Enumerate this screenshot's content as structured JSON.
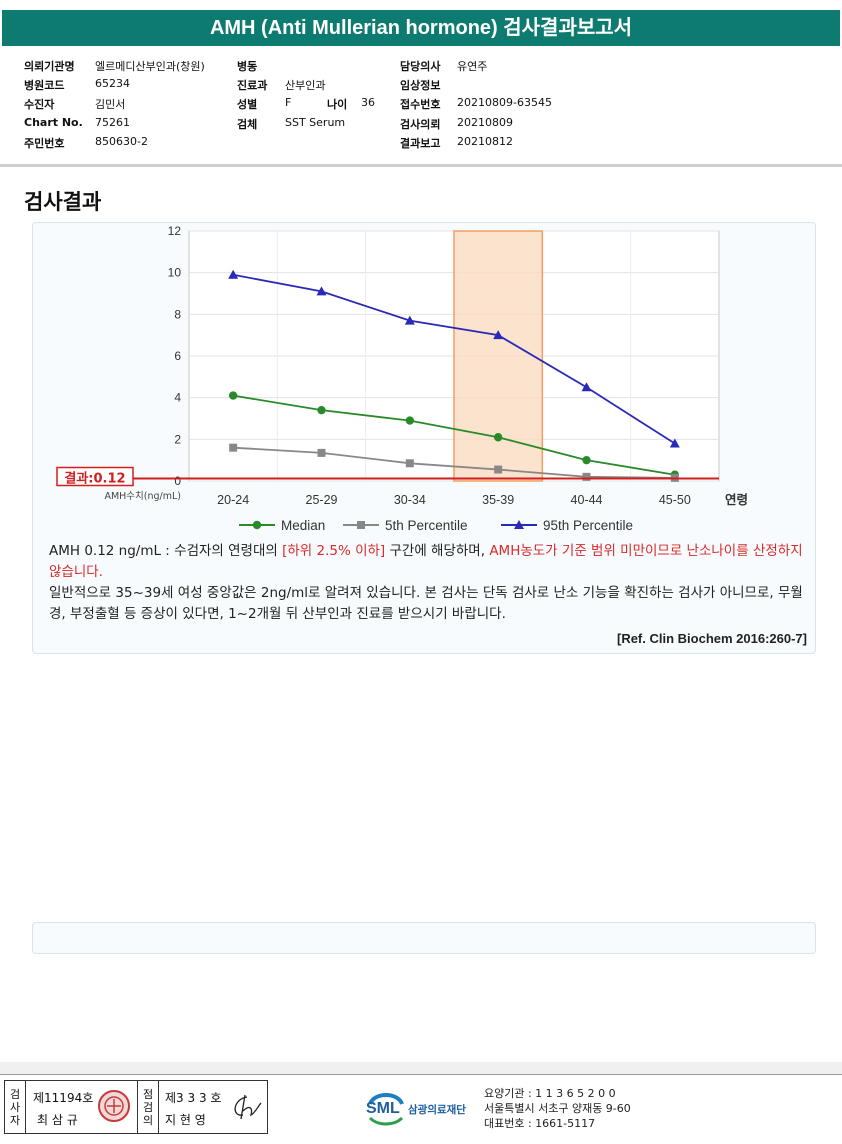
{
  "header": {
    "title": "AMH (Anti Mullerian hormone) 검사결과보고서"
  },
  "info": {
    "institution_label": "의뢰기관명",
    "institution": "엘르메디산부인과(창원)",
    "hospital_code_label": "병원코드",
    "hospital_code": "65234",
    "patient_label": "수진자",
    "patient": "김민서",
    "chart_no_label": "Chart No.",
    "chart_no": "75261",
    "rrn_label": "주민번호",
    "rrn": "850630-2",
    "ward_label": "병동",
    "ward": "",
    "dept_label": "진료과",
    "dept": "산부인과",
    "sex_label": "성별",
    "sex": "F",
    "age_label": "나이",
    "age": "36",
    "specimen_label": "검체",
    "specimen": "SST Serum",
    "doctor_label": "담당의사",
    "doctor": "유연주",
    "clinical_label": "임상정보",
    "clinical": "",
    "receipt_no_label": "접수번호",
    "receipt_no": "20210809-63545",
    "request_label": "검사의뢰",
    "request_date": "20210809",
    "report_label": "결과보고",
    "report_date": "20210812"
  },
  "section_title": "검사결과",
  "chart_data": {
    "type": "line",
    "categories": [
      "20-24",
      "25-29",
      "30-34",
      "35-39",
      "40-44",
      "45-50"
    ],
    "x_axis_suffix": "연령",
    "y_axis_note": "AMH수치(ng/mL)",
    "ylim": [
      0,
      12
    ],
    "yticks": [
      "0",
      "2",
      "4",
      "6",
      "8",
      "10",
      "12"
    ],
    "highlight_category": "35-39",
    "result_label": "결과:0.12",
    "result_value": 0.12,
    "series": [
      {
        "name": "Median",
        "color": "#2a8a2a",
        "marker": "circle",
        "values": [
          4.1,
          3.4,
          2.9,
          2.1,
          1.0,
          0.3
        ]
      },
      {
        "name": "5th Percentile",
        "color": "#888888",
        "marker": "square",
        "values": [
          1.6,
          1.35,
          0.85,
          0.55,
          0.2,
          0.15
        ]
      },
      {
        "name": "95th Percentile",
        "color": "#2a2ab8",
        "marker": "triangle",
        "values": [
          9.9,
          9.1,
          7.7,
          7.0,
          4.5,
          1.8
        ]
      }
    ]
  },
  "comment": {
    "p1_a": "AMH  0.12 ng/mL : 수검자의 연령대의 ",
    "p1_red1": "[하위 2.5% 이하]",
    "p1_b": " 구간에 해당하며, ",
    "p1_red2": "AMH농도가 기준 범위 미만이므로 난소나이를 산정하지 않습니다.",
    "p2": "일반적으로 35~39세 여성 중앙값은 2ng/ml로 알려져 있습니다. 본 검사는 단독 검사로 난소 기능을 확진하는 검사가 아니므로, 무월경, 부정출혈 등 증상이 있다면, 1~2개월 뒤 산부인과 진료를 받으시기 바랍니다.",
    "ref": "[Ref. Clin Biochem 2016:260-7]"
  },
  "footer": {
    "examiner_label": "검사자",
    "examiner_license": "제11194호",
    "examiner_name": "최 삼 규",
    "verifier_label": "점검의",
    "verifier_license": "제3 3 3 호",
    "verifier_name": "지 현 영",
    "org_logo_text": "SML",
    "org_name": "삼광의료재단",
    "org_code": "요양기관 : 1 1 3 6 5 2 0 0",
    "org_address": "서울특별시 서초구 양재동 9-60",
    "org_phone": "대표번호 : 1661-5117"
  }
}
